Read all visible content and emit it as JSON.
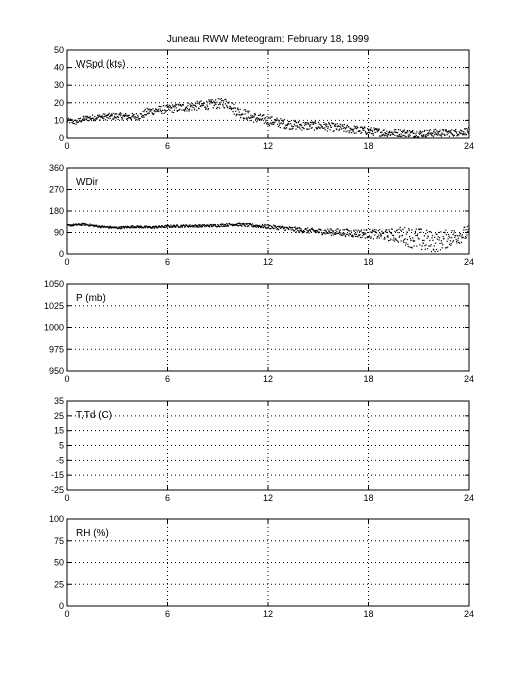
{
  "title": "Juneau RWW Meteogram:  February 18, 1999",
  "chart_data": [
    {
      "type": "scatter",
      "label": "WSpd (kts)",
      "xlim": [
        0,
        24
      ],
      "xticks": [
        0,
        6,
        12,
        18,
        24
      ],
      "ylim": [
        0,
        50
      ],
      "yticks": [
        0,
        10,
        20,
        30,
        40,
        50
      ],
      "grid": true,
      "color": "#000000",
      "anchors": [
        [
          0,
          10
        ],
        [
          0.5,
          9
        ],
        [
          1,
          11
        ],
        [
          2,
          12
        ],
        [
          3,
          12.5
        ],
        [
          4,
          12
        ],
        [
          4.5,
          13
        ],
        [
          4.8,
          15
        ],
        [
          5.5,
          16
        ],
        [
          6.5,
          17
        ],
        [
          7.5,
          18
        ],
        [
          8.5,
          19
        ],
        [
          9.5,
          20
        ],
        [
          9.8,
          19
        ],
        [
          10,
          16
        ],
        [
          10.5,
          14
        ],
        [
          11,
          12
        ],
        [
          12,
          10
        ],
        [
          13,
          8
        ],
        [
          14,
          7
        ],
        [
          15,
          7
        ],
        [
          16,
          6
        ],
        [
          17,
          5
        ],
        [
          18,
          4
        ],
        [
          19,
          3
        ],
        [
          20,
          3
        ],
        [
          21,
          2.5
        ],
        [
          22,
          3
        ],
        [
          23,
          3
        ],
        [
          24,
          4
        ]
      ],
      "noise": [
        [
          0,
          1.5
        ],
        [
          4.8,
          2.2
        ],
        [
          10,
          3
        ],
        [
          18,
          2.2
        ],
        [
          24,
          2
        ]
      ]
    },
    {
      "type": "scatter",
      "label": "WDir",
      "xlim": [
        0,
        24
      ],
      "xticks": [
        0,
        6,
        12,
        18,
        24
      ],
      "ylim": [
        0,
        360
      ],
      "yticks": [
        0,
        90,
        180,
        270,
        360
      ],
      "grid": true,
      "color": "#000000",
      "anchors": [
        [
          0,
          120
        ],
        [
          1,
          125
        ],
        [
          2,
          115
        ],
        [
          3,
          110
        ],
        [
          4,
          115
        ],
        [
          5,
          112
        ],
        [
          6,
          116
        ],
        [
          7,
          118
        ],
        [
          8,
          118
        ],
        [
          9,
          120
        ],
        [
          10,
          125
        ],
        [
          11,
          120
        ],
        [
          12,
          115
        ],
        [
          13,
          108
        ],
        [
          14,
          100
        ],
        [
          15,
          95
        ],
        [
          16,
          92
        ],
        [
          17,
          88
        ],
        [
          18,
          85
        ],
        [
          19,
          80
        ],
        [
          20,
          80
        ],
        [
          21,
          60
        ],
        [
          22,
          50
        ],
        [
          23,
          70
        ],
        [
          24,
          90
        ]
      ],
      "noise": [
        [
          0,
          4
        ],
        [
          10,
          6
        ],
        [
          15,
          12
        ],
        [
          19,
          22
        ],
        [
          21,
          50
        ],
        [
          24,
          30
        ]
      ]
    },
    {
      "type": "scatter",
      "label": "P (mb)",
      "xlim": [
        0,
        24
      ],
      "xticks": [
        0,
        6,
        12,
        18,
        24
      ],
      "ylim": [
        950,
        1050
      ],
      "yticks": [
        950,
        975,
        1000,
        1025,
        1050
      ],
      "grid": true,
      "anchors": [],
      "noise": []
    },
    {
      "type": "scatter",
      "label": "T,Td (C)",
      "xlim": [
        0,
        24
      ],
      "xticks": [
        0,
        6,
        12,
        18,
        24
      ],
      "ylim": [
        -25,
        35
      ],
      "yticks": [
        -25,
        -15,
        -5,
        5,
        15,
        25,
        35
      ],
      "grid": true,
      "anchors": [],
      "noise": []
    },
    {
      "type": "scatter",
      "label": "RH (%)",
      "xlim": [
        0,
        24
      ],
      "xticks": [
        0,
        6,
        12,
        18,
        24
      ],
      "ylim": [
        0,
        100
      ],
      "yticks": [
        0,
        25,
        50,
        75,
        100
      ],
      "grid": true,
      "anchors": [],
      "noise": []
    }
  ]
}
